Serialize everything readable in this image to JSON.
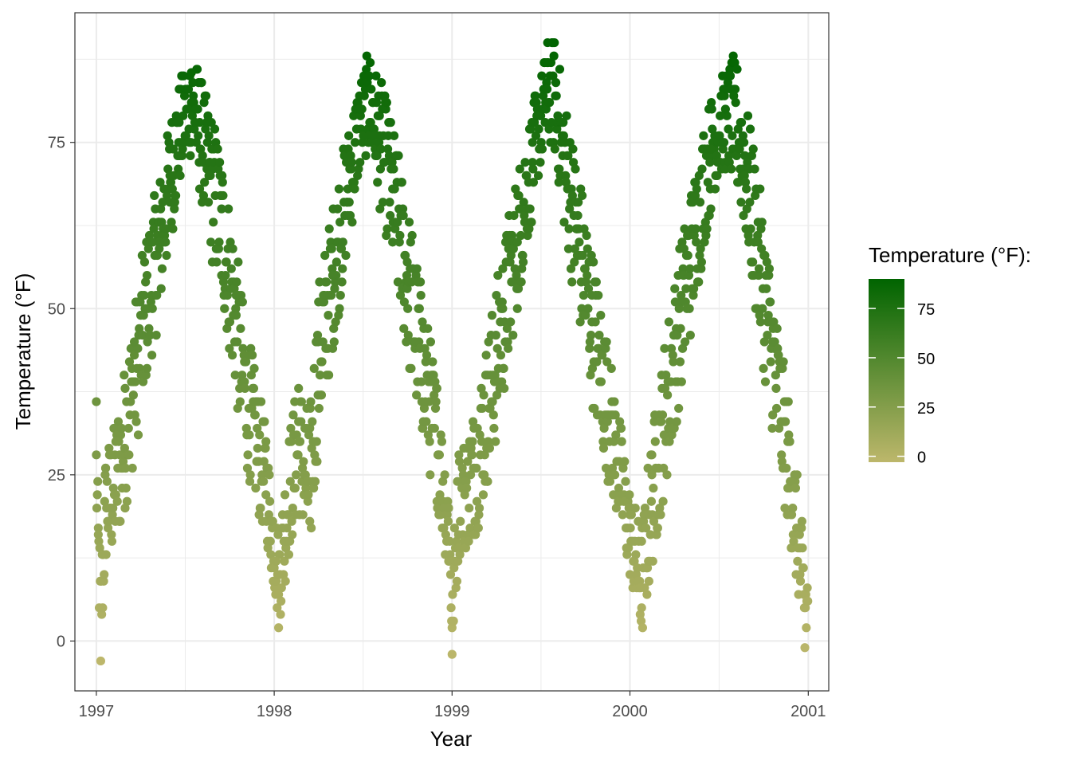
{
  "chart_data": {
    "type": "scatter",
    "title": "",
    "xlabel": "Year",
    "ylabel": "Temperature (°F)",
    "x_ticks": [
      "1997",
      "1998",
      "1999",
      "2000",
      "2001"
    ],
    "y_ticks": [
      "0",
      "25",
      "50",
      "75"
    ],
    "xlim": [
      "1996-11-18",
      "2001-02-12"
    ],
    "ylim": [
      -7.5,
      94.5
    ],
    "grid": true,
    "legend": {
      "title": "Temperature (°F):",
      "placement": "right",
      "labels": [
        "0",
        "25",
        "50",
        "75"
      ],
      "range": [
        -3,
        90
      ],
      "colors": [
        "#BDB76B",
        "#006400"
      ]
    },
    "points_note_anchors": [
      [
        "1997-01-01",
        36
      ],
      [
        "1997-01-05",
        16
      ],
      [
        "1997-01-10",
        -3
      ],
      [
        "1997-01-20",
        26
      ],
      [
        "1997-02-10",
        30
      ],
      [
        "1997-03-01",
        38
      ],
      [
        "1997-03-20",
        45
      ],
      [
        "1997-04-15",
        55
      ],
      [
        "1997-05-10",
        60
      ],
      [
        "1997-06-01",
        70
      ],
      [
        "1997-06-20",
        78
      ],
      [
        "1997-07-15",
        85.5
      ],
      [
        "1997-08-01",
        78
      ],
      [
        "1997-08-20",
        70
      ],
      [
        "1997-09-15",
        65
      ],
      [
        "1997-10-15",
        52
      ],
      [
        "1997-11-01",
        42
      ],
      [
        "1997-11-25",
        36
      ],
      [
        "1997-12-15",
        30
      ],
      [
        "1998-01-05",
        12
      ],
      [
        "1998-01-10",
        7
      ],
      [
        "1998-02-01",
        30
      ],
      [
        "1998-02-20",
        38
      ],
      [
        "1998-03-15",
        18
      ],
      [
        "1998-04-01",
        45
      ],
      [
        "1998-05-01",
        55
      ],
      [
        "1998-06-01",
        68
      ],
      [
        "1998-06-25",
        80
      ],
      [
        "1998-07-15",
        85
      ],
      [
        "1998-08-05",
        76
      ],
      [
        "1998-09-01",
        68
      ],
      [
        "1998-10-01",
        57
      ],
      [
        "1998-11-01",
        48
      ],
      [
        "1998-12-01",
        38
      ],
      [
        "1998-12-25",
        20
      ],
      [
        "1999-01-01",
        -2
      ],
      [
        "1999-01-15",
        28
      ],
      [
        "1999-02-15",
        32
      ],
      [
        "1999-03-15",
        40
      ],
      [
        "1999-04-15",
        50
      ],
      [
        "1999-05-15",
        60
      ],
      [
        "1999-06-15",
        72
      ],
      [
        "1999-07-15",
        87
      ],
      [
        "1999-07-28",
        90
      ],
      [
        "1999-08-15",
        76
      ],
      [
        "1999-09-15",
        62
      ],
      [
        "1999-10-15",
        52
      ],
      [
        "1999-11-15",
        42
      ],
      [
        "1999-12-15",
        30
      ],
      [
        "2000-01-01",
        19
      ],
      [
        "2000-01-25",
        5
      ],
      [
        "2000-02-15",
        25
      ],
      [
        "2000-03-15",
        40
      ],
      [
        "2000-04-15",
        52
      ],
      [
        "2000-05-15",
        62
      ],
      [
        "2000-06-15",
        74
      ],
      [
        "2000-07-15",
        80
      ],
      [
        "2000-08-01",
        82
      ],
      [
        "2000-08-20",
        76
      ],
      [
        "2000-09-20",
        60
      ],
      [
        "2000-10-20",
        45
      ],
      [
        "2000-11-20",
        30
      ],
      [
        "2000-12-15",
        10
      ],
      [
        "2000-12-25",
        -1
      ]
    ]
  }
}
